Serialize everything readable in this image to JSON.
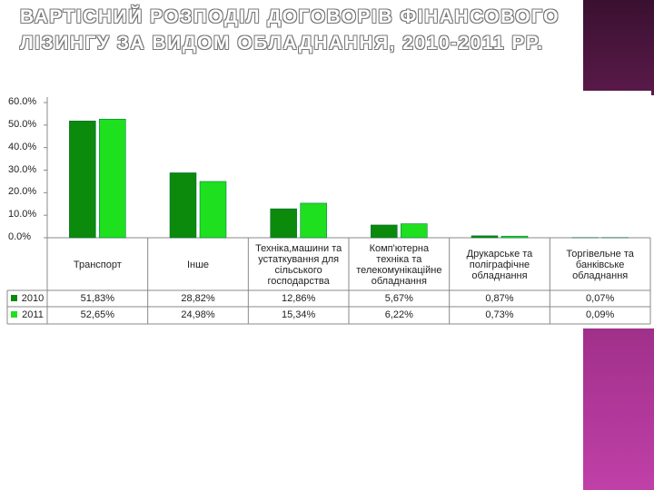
{
  "chart_data": {
    "type": "bar",
    "title": "ВАРТІСНИЙ РОЗПОДІЛ ДОГОВОРІВ ФІНАНСОВОГО ЛІЗИНГУ ЗА ВИДОМ ОБЛАДНАННЯ, 2010-2011 РР.",
    "categories": [
      "Транспорт",
      "Інше",
      "Техніка,машини та устаткування для сільського господарства",
      "Комп'ютерна техніка та телекомунікаційне обладнання",
      "Друкарське та поліграфічне обладнання",
      "Торгівельне та банківське обладнання"
    ],
    "series": [
      {
        "name": "2010",
        "color": "#0b8a0b",
        "values": [
          51.83,
          28.82,
          12.86,
          5.67,
          0.87,
          0.07
        ],
        "value_labels": [
          "51,83%",
          "28,82%",
          "12,86%",
          "5,67%",
          "0,87%",
          "0,07%"
        ]
      },
      {
        "name": "2011",
        "color": "#1ee01e",
        "values": [
          52.65,
          24.98,
          15.34,
          6.22,
          0.73,
          0.09
        ],
        "value_labels": [
          "52,65%",
          "24,98%",
          "15,34%",
          "6,22%",
          "0,73%",
          "0,09%"
        ]
      }
    ],
    "ylim": [
      0,
      60
    ],
    "yticks": [
      {
        "value": 0,
        "label": "0.0%"
      },
      {
        "value": 10,
        "label": "10.0%"
      },
      {
        "value": 20,
        "label": "20.0%"
      },
      {
        "value": 30,
        "label": "30.0%"
      },
      {
        "value": 40,
        "label": "40.0%"
      },
      {
        "value": 50,
        "label": "50.0%"
      },
      {
        "value": 60,
        "label": "60.0%"
      }
    ],
    "grid": false
  }
}
